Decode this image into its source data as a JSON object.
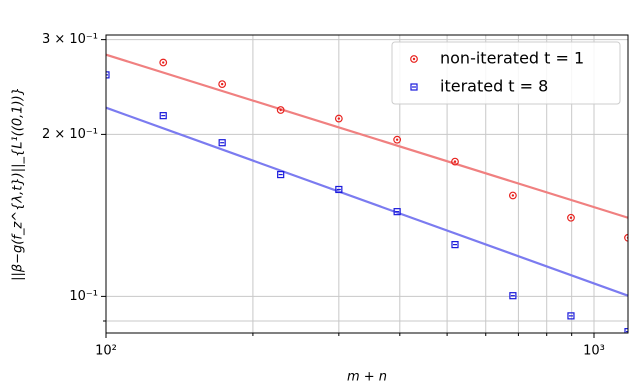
{
  "chart_data": {
    "type": "scatter",
    "x_label": "m + n",
    "y_label": "||β−g(f_z^{λ,t})||_{L¹((0,1))}",
    "log_x": true,
    "log_y": true,
    "grid": true,
    "legend": "upper right",
    "xlim": [
      100,
      1174
    ],
    "ylim": [
      0.0855,
      0.306
    ],
    "xticks": [
      {
        "value": 100,
        "label": "10²"
      },
      {
        "value": 1000,
        "label": "10³"
      }
    ],
    "xminor_ticks": [
      200,
      300,
      400,
      500,
      600,
      700,
      800,
      900
    ],
    "yticks": [
      {
        "value": 0.1,
        "label": "10⁻¹"
      },
      {
        "value": 0.2,
        "label": "2 × 10⁻¹"
      },
      {
        "value": 0.3,
        "label": "3 × 10⁻¹"
      }
    ],
    "yminor_ticks": [
      0.09
    ],
    "series": [
      {
        "name": "non-iterated t = 1",
        "color": "#e8231f",
        "marker": "circle",
        "x": [
          131,
          173,
          228,
          300,
          395,
          519,
          682,
          897,
          1174
        ],
        "values": [
          0.272,
          0.248,
          0.222,
          0.214,
          0.1955,
          0.178,
          0.154,
          0.14,
          0.1285
        ]
      },
      {
        "name": "iterated t = 8",
        "color": "#1a1adb",
        "marker": "square",
        "x": [
          100,
          131,
          173,
          228,
          300,
          395,
          519,
          682,
          897,
          1174
        ],
        "values": [
          0.258,
          0.2167,
          0.193,
          0.1684,
          0.158,
          0.1437,
          0.1248,
          0.1003,
          0.092,
          0.086
        ]
      }
    ],
    "fits": [
      {
        "color": "#f08080",
        "x": [
          100,
          1174
        ],
        "values": [
          0.2813,
          0.14
        ]
      },
      {
        "color": "#7b7bf0",
        "x": [
          100,
          1174
        ],
        "values": [
          0.2242,
          0.1003
        ]
      }
    ]
  }
}
